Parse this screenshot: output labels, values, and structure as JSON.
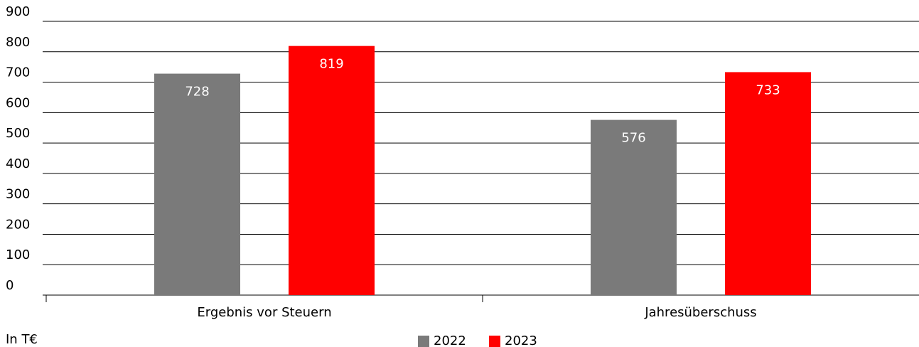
{
  "chart_data": {
    "type": "bar",
    "categories": [
      "Ergebnis vor Steuern",
      "Jahresüberschuss"
    ],
    "series": [
      {
        "name": "2022",
        "color": "#7a7a7a",
        "values": [
          728,
          576
        ]
      },
      {
        "name": "2023",
        "color": "#ff0000",
        "values": [
          819,
          733
        ]
      }
    ],
    "ylim": [
      0,
      900
    ],
    "yticks": [
      0,
      100,
      200,
      300,
      400,
      500,
      600,
      700,
      800,
      900
    ],
    "grid": true,
    "legend": "bottom",
    "note": "In T€"
  }
}
